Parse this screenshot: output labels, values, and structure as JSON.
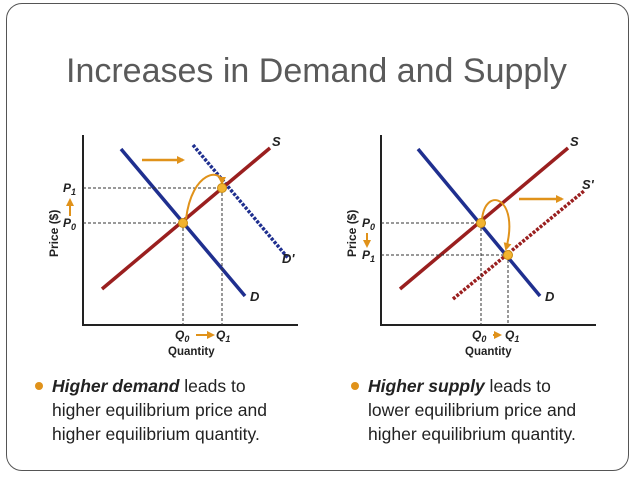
{
  "slide": {
    "title": "Increases in Demand and Supply",
    "accent_color": "#e0921a",
    "demand_color": "#1f2f8f",
    "supply_color": "#9a1f1f"
  },
  "left_diagram": {
    "price_axis": "Price ($)",
    "quantity_axis": "Quantity",
    "supply": "S",
    "demand": "D",
    "new_demand": "D'",
    "p0": "P",
    "p0_sub": "0",
    "p1": "P",
    "p1_sub": "1",
    "q0": "Q",
    "q0_sub": "0",
    "q1": "Q",
    "q1_sub": "1"
  },
  "right_diagram": {
    "price_axis": "Price ($)",
    "quantity_axis": "Quantity",
    "supply": "S",
    "new_supply": "S'",
    "demand": "D",
    "p0": "P",
    "p0_sub": "0",
    "p1": "P",
    "p1_sub": "1",
    "q0": "Q",
    "q0_sub": "0",
    "q1": "Q",
    "q1_sub": "1"
  },
  "bullets": {
    "left": {
      "emphasis": "Higher demand",
      "rest_line1": " leads to",
      "line2": "higher equilibrium price and",
      "line3": "higher equilibrium quantity."
    },
    "right": {
      "emphasis": "Higher supply",
      "rest_line1": " leads to",
      "line2": "lower equilibrium price and",
      "line3": "higher equilibrium quantity."
    }
  }
}
